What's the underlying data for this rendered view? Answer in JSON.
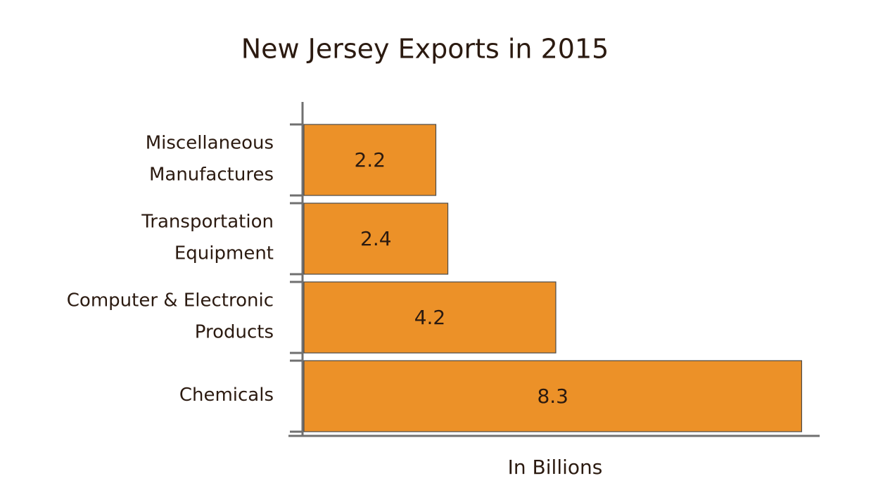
{
  "chart_data": {
    "type": "hbar",
    "title": "New Jersey Exports in 2015",
    "x_label": "In Billions",
    "categories": [
      [
        "Miscellaneous",
        "Manufactures"
      ],
      [
        "Transportation",
        "Equipment"
      ],
      [
        "Computer & Electronic",
        "Products"
      ],
      [
        "Chemicals"
      ]
    ],
    "values": [
      2.2,
      2.4,
      4.2,
      8.3
    ],
    "color": "#ec9128",
    "xlim": [
      0,
      8.6
    ]
  }
}
